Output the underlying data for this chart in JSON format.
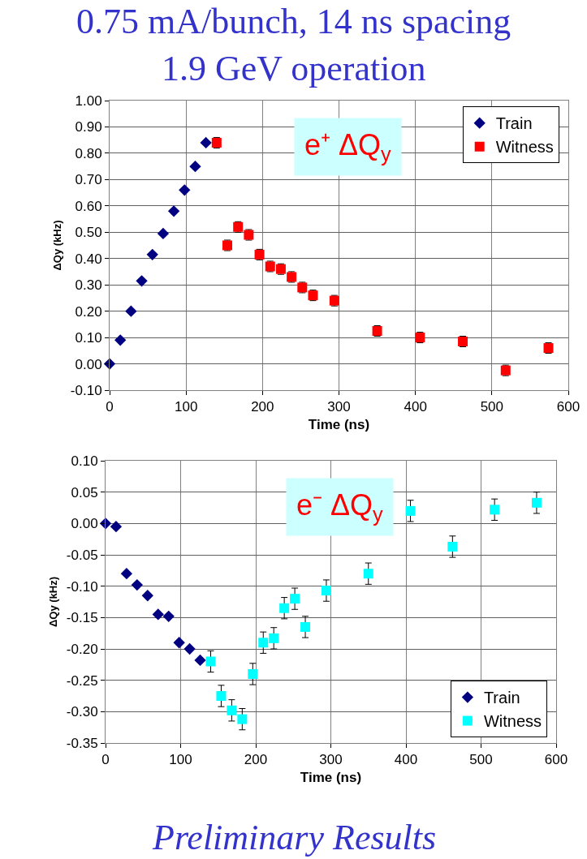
{
  "chart_data": [
    {
      "type": "scatter",
      "title": "0.75 mA/bunch, 14 ns spacing",
      "subtitle": "1.9 GeV operation",
      "xlabel": "Time (ns)",
      "ylabel": "ΔQy (kHz)",
      "annotations": [
        "e⁺ ΔQ$_{y}$"
      ],
      "series": [
        {
          "name": "Train",
          "color": "#000080",
          "marker": "diamond",
          "x": [
            0,
            14,
            28,
            42,
            56,
            70,
            84,
            98,
            112,
            126
          ],
          "values": [
            0,
            0.09,
            0.2,
            0.315,
            0.415,
            0.495,
            0.58,
            0.66,
            0.75,
            0.84
          ]
        },
        {
          "name": "Witness",
          "color": "#ff0000",
          "marker": "square",
          "x": [
            140,
            154,
            168,
            182,
            196,
            210,
            224,
            238,
            252,
            266,
            294,
            350,
            406,
            462,
            518,
            574
          ],
          "values": [
            0.84,
            0.45,
            0.52,
            0.49,
            0.415,
            0.37,
            0.36,
            0.33,
            0.29,
            0.26,
            0.24,
            0.125,
            0.1,
            0.085,
            -0.025,
            0.06
          ],
          "errors": [
            0.02,
            0.02,
            0.02,
            0.02,
            0.02,
            0.02,
            0.02,
            0.02,
            0.02,
            0.02,
            0.02,
            0.02,
            0.02,
            0.02,
            0.02,
            0.02
          ]
        }
      ],
      "xlim": [
        0,
        600
      ],
      "xticks": [
        0,
        100,
        200,
        300,
        400,
        500,
        600
      ],
      "ylim": [
        -0.1,
        1.0
      ],
      "yticks": [
        {
          "value": -0.1,
          "label": "-0.10"
        },
        {
          "value": 0,
          "label": "0.00"
        },
        {
          "value": 0.1,
          "label": "0.10"
        },
        {
          "value": 0.2,
          "label": "0.20"
        },
        {
          "value": 0.3,
          "label": "0.30"
        },
        {
          "value": 0.4,
          "label": "0.40"
        },
        {
          "value": 0.5,
          "label": "0.50"
        },
        {
          "value": 0.6,
          "label": "0.60"
        },
        {
          "value": 0.7,
          "label": "0.70"
        },
        {
          "value": 0.8,
          "label": "0.80"
        },
        {
          "value": 0.9,
          "label": "0.90"
        },
        {
          "value": 1.0,
          "label": "1.00"
        }
      ],
      "grid": true,
      "legend": "top right"
    },
    {
      "type": "scatter",
      "xlabel": "Time (ns)",
      "ylabel": "ΔQy (kHz)",
      "annotations": [
        "e⁻ ΔQ$_{y}$",
        "Preliminary Results"
      ],
      "series": [
        {
          "name": "Train",
          "color": "#000080",
          "marker": "diamond",
          "x": [
            0,
            14,
            28,
            42,
            56,
            70,
            84,
            98,
            112,
            126
          ],
          "values": [
            0,
            -0.005,
            -0.08,
            -0.098,
            -0.115,
            -0.145,
            -0.148,
            -0.19,
            -0.2,
            -0.218
          ]
        },
        {
          "name": "Witness",
          "color": "#00ffff",
          "marker": "square",
          "x": [
            140,
            154,
            168,
            182,
            196,
            210,
            224,
            238,
            252,
            266,
            294,
            350,
            406,
            462,
            518,
            574
          ],
          "values": [
            -0.22,
            -0.275,
            -0.298,
            -0.312,
            -0.24,
            -0.19,
            -0.183,
            -0.135,
            -0.12,
            -0.165,
            -0.107,
            -0.08,
            0.02,
            -0.037,
            0.022,
            0.033
          ],
          "errors": [
            0.017,
            0.017,
            0.017,
            0.017,
            0.017,
            0.017,
            0.017,
            0.017,
            0.017,
            0.017,
            0.017,
            0.017,
            0.017,
            0.017,
            0.017,
            0.017
          ]
        }
      ],
      "xlim": [
        0,
        600
      ],
      "xticks": [
        0,
        100,
        200,
        300,
        400,
        500,
        600
      ],
      "ylim": [
        -0.35,
        0.1
      ],
      "yticks": [
        {
          "value": -0.35,
          "label": "-0.35"
        },
        {
          "value": -0.3,
          "label": "-0.30"
        },
        {
          "value": -0.25,
          "label": "-0.25"
        },
        {
          "value": -0.2,
          "label": "-0.20"
        },
        {
          "value": -0.15,
          "label": "-0.15"
        },
        {
          "value": -0.1,
          "label": "-0.10"
        },
        {
          "value": -0.05,
          "label": "-0.05"
        },
        {
          "value": 0,
          "label": "0.00"
        },
        {
          "value": 0.05,
          "label": "0.05"
        },
        {
          "value": 0.1,
          "label": "0.10"
        }
      ],
      "grid": true,
      "legend": "bottom right"
    }
  ]
}
